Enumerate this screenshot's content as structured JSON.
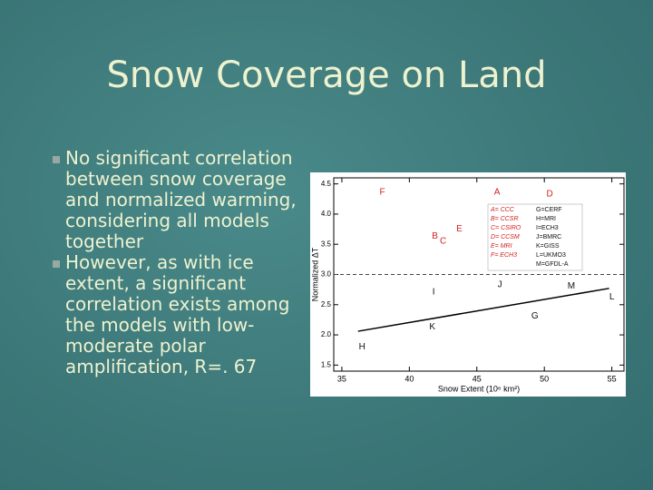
{
  "slide": {
    "title": "Snow Coverage on Land",
    "bullets": [
      [
        "No significant correlation",
        "between snow coverage",
        "and normalized warming,",
        "considering all models",
        "together"
      ],
      [
        "However, as with ice",
        "extent, a significant",
        "correlation exists among",
        "the models with low-",
        "moderate polar",
        "amplification, R=. 67"
      ]
    ]
  },
  "chart_data": {
    "type": "scatter",
    "x_label": "Snow Extent (10⁶ km²)",
    "y_label": "Normalized ΔT",
    "xlim": [
      34.4,
      55.9
    ],
    "ylim": [
      1.4,
      4.6
    ],
    "xticks": [
      35,
      40,
      45,
      50,
      55
    ],
    "yticks": [
      1.5,
      {
        "value": 2,
        "label": "2.0"
      },
      2.5,
      {
        "value": 3,
        "label": "3.0"
      },
      3.5,
      {
        "value": 4,
        "label": "4.0"
      },
      4.5
    ],
    "reference_line": 3,
    "fit": {
      "x": [
        36.2,
        54.8
      ],
      "y": [
        2.06,
        2.77
      ]
    },
    "points": [
      {
        "label": "F",
        "x": 38.0,
        "y": 4.36,
        "color": "#d42020"
      },
      {
        "label": "A",
        "x": 46.5,
        "y": 4.36,
        "color": "#d42020"
      },
      {
        "label": "D",
        "x": 50.4,
        "y": 4.33,
        "color": "#d42020"
      },
      {
        "label": "B",
        "x": 41.9,
        "y": 3.63,
        "color": "#d42020"
      },
      {
        "label": "C",
        "x": 42.5,
        "y": 3.55,
        "color": "#d42020"
      },
      {
        "label": "E",
        "x": 43.7,
        "y": 3.75,
        "color": "#d42020"
      },
      {
        "label": "I",
        "x": 41.8,
        "y": 2.71,
        "color": "#111111"
      },
      {
        "label": "J",
        "x": 46.7,
        "y": 2.83,
        "color": "#111111"
      },
      {
        "label": "M",
        "x": 52.0,
        "y": 2.81,
        "color": "#111111"
      },
      {
        "label": "L",
        "x": 55.0,
        "y": 2.63,
        "color": "#111111"
      },
      {
        "label": "G",
        "x": 49.3,
        "y": 2.31,
        "color": "#111111"
      },
      {
        "label": "K",
        "x": 41.7,
        "y": 2.13,
        "color": "#111111"
      },
      {
        "label": "H",
        "x": 36.5,
        "y": 1.8,
        "color": "#111111"
      }
    ],
    "key": [
      {
        "text": "A= CCC",
        "color": "#d42020"
      },
      {
        "text": "B= CCSR",
        "color": "#d42020"
      },
      {
        "text": "C= CSIRO",
        "color": "#d42020"
      },
      {
        "text": "D= CCSM",
        "color": "#d42020"
      },
      {
        "text": "E= MRI",
        "color": "#d42020"
      },
      {
        "text": "F= ECH3",
        "color": "#d42020"
      },
      {
        "text": "G=CERF",
        "color": "#111111"
      },
      {
        "text": "H=MRI",
        "color": "#111111"
      },
      {
        "text": "I=ECH3",
        "color": "#111111"
      },
      {
        "text": "J=BMRC",
        "color": "#111111"
      },
      {
        "text": "K=GISS",
        "color": "#111111"
      },
      {
        "text": "L=UKMO3",
        "color": "#111111"
      },
      {
        "text": "M=GFDL-A",
        "color": "#111111"
      }
    ]
  }
}
